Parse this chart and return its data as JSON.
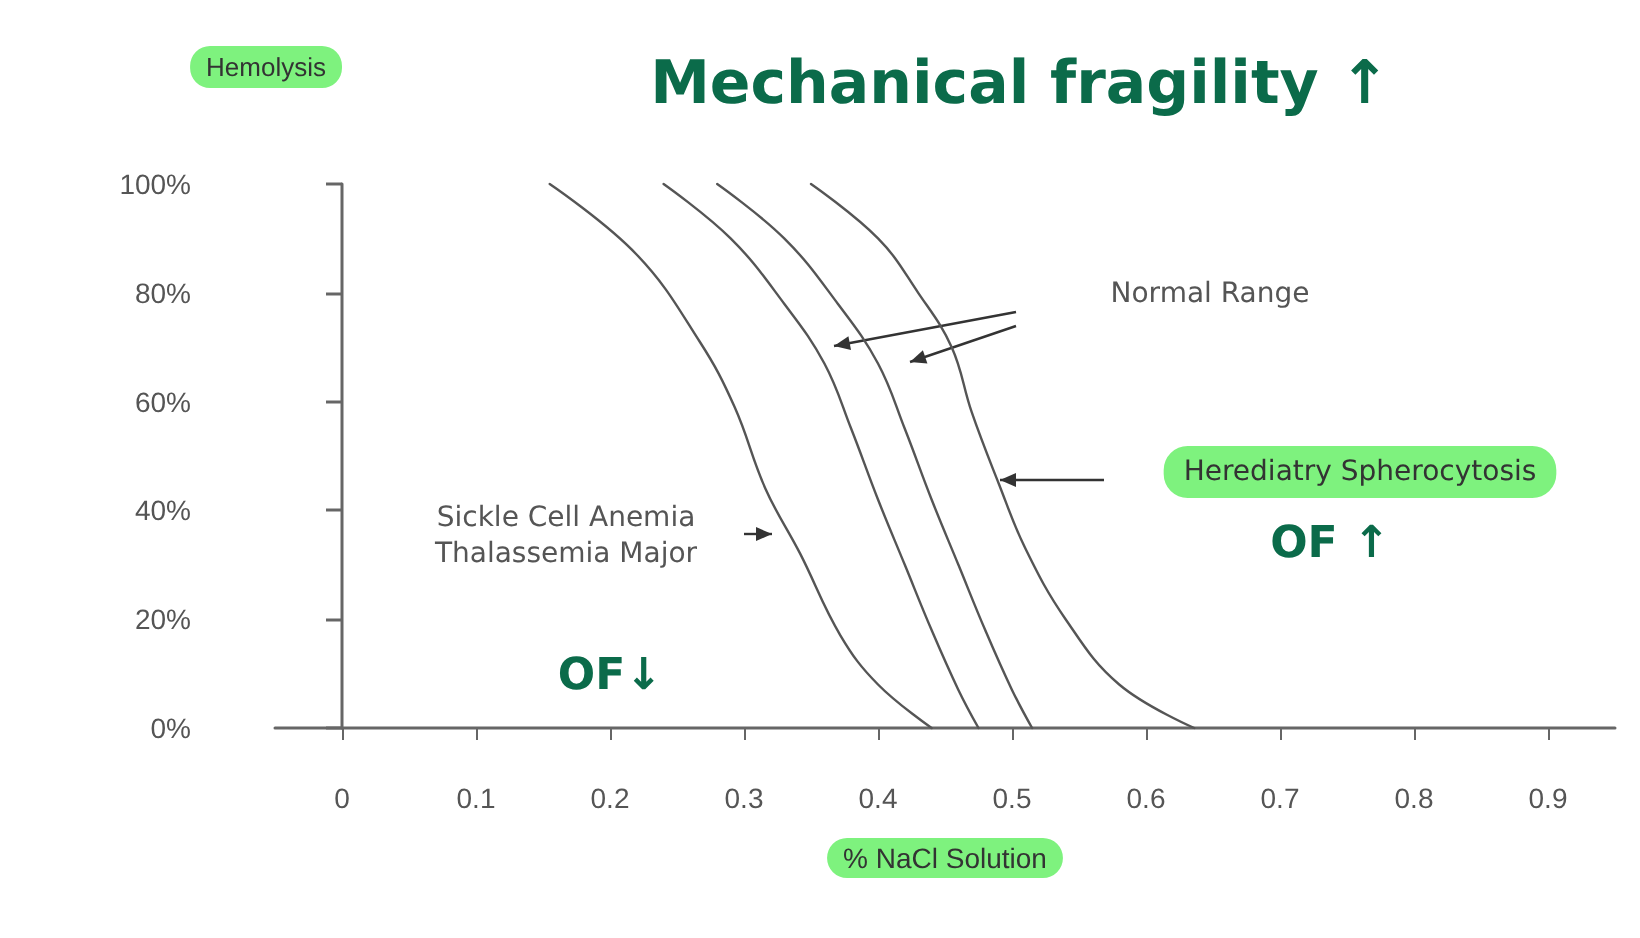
{
  "chart_data": {
    "type": "line",
    "xlabel": "% NaCl Solution",
    "ylabel": "Hemolysis",
    "xlim": [
      -0.05,
      0.95
    ],
    "xticks": [
      0,
      0.1,
      0.2,
      0.3,
      0.4,
      0.5,
      0.6,
      0.7,
      0.8,
      0.9
    ],
    "ylim": [
      0,
      100
    ],
    "yticks": [
      {
        "value": 0,
        "label": "0%"
      },
      {
        "value": 20,
        "label": "20%"
      },
      {
        "value": 40,
        "label": "40%"
      },
      {
        "value": 60,
        "label": "60%"
      },
      {
        "value": 80,
        "label": "80%"
      },
      {
        "value": 100,
        "label": "100%"
      }
    ],
    "marker": "none",
    "line_style": "solid",
    "series": [
      {
        "color": "#555555",
        "x": [
          0.155,
          0.22,
          0.267,
          0.293,
          0.316,
          0.342,
          0.372,
          0.4,
          0.44
        ],
        "values": [
          100,
          87,
          71,
          59,
          44,
          32,
          17,
          8,
          0
        ]
      },
      {
        "color": "#555555",
        "x": [
          0.24,
          0.29,
          0.33,
          0.36,
          0.38,
          0.4,
          0.42,
          0.44,
          0.46,
          0.475
        ],
        "values": [
          100,
          90,
          78,
          67,
          55,
          42,
          30,
          18,
          7,
          0
        ]
      },
      {
        "color": "#555555",
        "x": [
          0.28,
          0.33,
          0.37,
          0.4,
          0.42,
          0.44,
          0.46,
          0.48,
          0.5,
          0.515
        ],
        "values": [
          100,
          90,
          78,
          67,
          55,
          42,
          30,
          18,
          7,
          0
        ]
      },
      {
        "color": "#555555",
        "x": [
          0.35,
          0.4,
          0.43,
          0.455,
          0.47,
          0.49,
          0.51,
          0.54,
          0.58,
          0.636
        ],
        "values": [
          100,
          90,
          80,
          70,
          58,
          45,
          33,
          20,
          8,
          0
        ]
      }
    ],
    "annotations": [
      "Normal Range",
      "Herediatry Spherocytosis",
      "Sickle Cell Anemia\nThalassemia Major",
      "Mechanical fragility ↑",
      "OF↓",
      "OF ↑"
    ]
  }
}
